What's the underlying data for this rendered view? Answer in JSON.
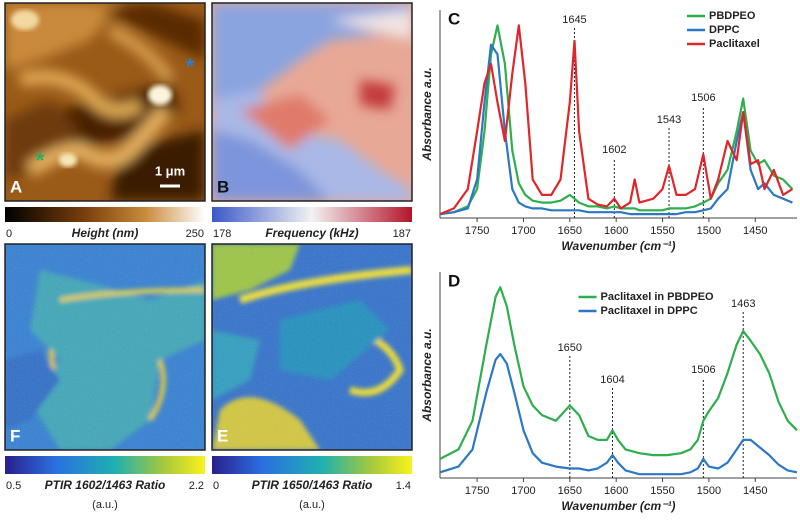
{
  "images": [
    {
      "letter": "A",
      "colorbar": {
        "min": 0,
        "max": 250,
        "label": "Height (nm)"
      }
    },
    {
      "letter": "B",
      "colorbar": {
        "min": 178,
        "max": 187,
        "label": "Frequency (kHz)"
      }
    },
    {
      "letter": "F",
      "colorbar": {
        "min": 0.5,
        "max": 2.2,
        "label": "PTIR 1602/1463 Ratio",
        "unit": "(a.u.)"
      }
    },
    {
      "letter": "E",
      "colorbar": {
        "min": 0,
        "max": 1.4,
        "label": "PTIR 1650/1463 Ratio",
        "unit": "(a.u.)"
      }
    }
  ],
  "scale_bar": "1 μm",
  "markers": [
    "*",
    "*"
  ],
  "chart_data": [
    {
      "type": "line",
      "panel": "C",
      "x_label": "Wavenumber (cm⁻¹)",
      "y_label": "Absorbance a.u.",
      "xlim": [
        1790,
        1405
      ],
      "xticks": [
        1750,
        1700,
        1650,
        1600,
        1550,
        1500,
        1450
      ],
      "ylim": [
        0,
        1.08
      ],
      "legend": "upper right",
      "peak_marks": [
        1645,
        1602,
        1543,
        1506
      ],
      "x": [
        1790,
        1775,
        1760,
        1750,
        1742,
        1735,
        1728,
        1720,
        1712,
        1705,
        1698,
        1690,
        1680,
        1670,
        1660,
        1650,
        1645,
        1640,
        1630,
        1620,
        1610,
        1602,
        1595,
        1585,
        1580,
        1575,
        1560,
        1550,
        1543,
        1535,
        1525,
        1515,
        1506,
        1498,
        1490,
        1480,
        1470,
        1463,
        1455,
        1447,
        1440,
        1430,
        1420,
        1410
      ],
      "series": [
        {
          "name": "PBDPEO",
          "color": "#2eae4e",
          "values": [
            0.02,
            0.03,
            0.06,
            0.15,
            0.45,
            0.85,
            1.0,
            0.8,
            0.35,
            0.18,
            0.12,
            0.09,
            0.08,
            0.08,
            0.09,
            0.12,
            0.1,
            0.08,
            0.06,
            0.06,
            0.05,
            0.06,
            0.05,
            0.05,
            0.05,
            0.04,
            0.04,
            0.04,
            0.05,
            0.05,
            0.05,
            0.06,
            0.08,
            0.1,
            0.18,
            0.25,
            0.45,
            0.62,
            0.35,
            0.28,
            0.3,
            0.22,
            0.2,
            0.15
          ]
        },
        {
          "name": "DPPC",
          "color": "#2c78c4",
          "values": [
            0.02,
            0.03,
            0.05,
            0.2,
            0.6,
            0.9,
            0.85,
            0.45,
            0.15,
            0.08,
            0.06,
            0.05,
            0.05,
            0.04,
            0.04,
            0.04,
            0.04,
            0.04,
            0.03,
            0.03,
            0.03,
            0.03,
            0.03,
            0.02,
            0.02,
            0.02,
            0.02,
            0.02,
            0.02,
            0.02,
            0.03,
            0.03,
            0.04,
            0.05,
            0.1,
            0.15,
            0.4,
            0.55,
            0.25,
            0.15,
            0.18,
            0.12,
            0.1,
            0.08
          ]
        },
        {
          "name": "Paclitaxel",
          "color": "#e0262a",
          "values": [
            0.02,
            0.05,
            0.15,
            0.45,
            0.7,
            0.8,
            0.6,
            0.4,
            0.75,
            1.0,
            0.7,
            0.2,
            0.12,
            0.12,
            0.2,
            0.6,
            0.92,
            0.45,
            0.1,
            0.07,
            0.06,
            0.1,
            0.05,
            0.08,
            0.2,
            0.08,
            0.1,
            0.15,
            0.27,
            0.12,
            0.12,
            0.15,
            0.33,
            0.1,
            0.2,
            0.4,
            0.3,
            0.55,
            0.28,
            0.3,
            0.15,
            0.25,
            0.12,
            0.15
          ]
        }
      ]
    },
    {
      "type": "line",
      "panel": "D",
      "x_label": "Wavenumber (cm⁻¹)",
      "y_label": "Absorbance a.u.",
      "xlim": [
        1790,
        1405
      ],
      "xticks": [
        1750,
        1700,
        1650,
        1600,
        1550,
        1500,
        1450
      ],
      "ylim": [
        0,
        1.08
      ],
      "legend": "upper center",
      "peak_marks": [
        1650,
        1604,
        1506,
        1463
      ],
      "x": [
        1790,
        1770,
        1755,
        1740,
        1730,
        1725,
        1718,
        1710,
        1700,
        1690,
        1680,
        1665,
        1650,
        1640,
        1630,
        1620,
        1610,
        1604,
        1598,
        1590,
        1575,
        1560,
        1545,
        1530,
        1520,
        1512,
        1506,
        1500,
        1490,
        1480,
        1470,
        1463,
        1455,
        1445,
        1435,
        1425,
        1415,
        1405
      ],
      "series": [
        {
          "name": "Paclitaxel in PBDPEO",
          "color": "#2eae4e",
          "values": [
            0.1,
            0.15,
            0.3,
            0.7,
            0.95,
            1.0,
            0.9,
            0.7,
            0.48,
            0.38,
            0.33,
            0.3,
            0.38,
            0.33,
            0.22,
            0.2,
            0.2,
            0.25,
            0.2,
            0.15,
            0.13,
            0.12,
            0.12,
            0.13,
            0.15,
            0.2,
            0.3,
            0.35,
            0.42,
            0.55,
            0.7,
            0.77,
            0.72,
            0.65,
            0.55,
            0.4,
            0.3,
            0.25
          ]
        },
        {
          "name": "Paclitaxel in DPPC",
          "color": "#2c78c4",
          "values": [
            0.03,
            0.06,
            0.15,
            0.45,
            0.62,
            0.65,
            0.6,
            0.45,
            0.25,
            0.13,
            0.08,
            0.06,
            0.05,
            0.05,
            0.04,
            0.05,
            0.08,
            0.12,
            0.08,
            0.04,
            0.02,
            0.02,
            0.02,
            0.02,
            0.03,
            0.05,
            0.1,
            0.06,
            0.05,
            0.08,
            0.15,
            0.2,
            0.2,
            0.16,
            0.12,
            0.07,
            0.04,
            0.03
          ]
        }
      ]
    }
  ]
}
